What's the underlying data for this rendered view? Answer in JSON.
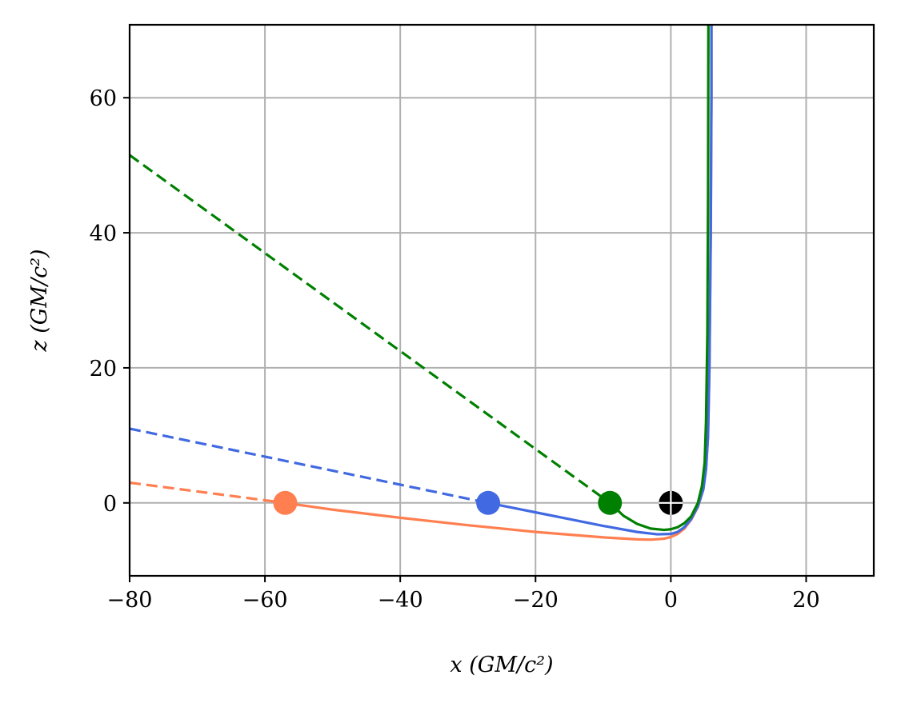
{
  "chart_data": {
    "type": "line",
    "title": "",
    "xlabel": "x (GM/c²)",
    "ylabel": "z (GM/c²)",
    "xlim": [
      -80,
      30
    ],
    "ylim": [
      -10.8,
      70.8
    ],
    "xticks": [
      -80,
      -60,
      -40,
      -20,
      0,
      20
    ],
    "yticks": [
      0,
      20,
      40,
      60
    ],
    "xtick_labels": [
      "−80",
      "−60",
      "−40",
      "−20",
      "0",
      "20"
    ],
    "ytick_labels": [
      "0",
      "20",
      "40",
      "60"
    ],
    "grid": true,
    "series": [
      {
        "color": "#ff7f50",
        "style": "dashed",
        "x": [
          -80,
          -57
        ],
        "y": [
          3.0,
          0.0
        ]
      },
      {
        "color": "#ff7f50",
        "style": "solid",
        "x": [
          -57,
          -50,
          -40,
          -30,
          -20,
          -10,
          -5,
          -3,
          -1,
          0,
          1,
          2,
          3,
          4,
          4.8,
          5.2,
          5.5,
          5.7,
          5.9,
          6.0,
          6.0
        ],
        "y": [
          0.0,
          -1.0,
          -2.2,
          -3.3,
          -4.3,
          -5.1,
          -5.4,
          -5.45,
          -5.3,
          -5.05,
          -4.6,
          -3.8,
          -2.5,
          -0.6,
          2.0,
          5.0,
          10.0,
          20.0,
          40.0,
          60.0,
          70.8
        ]
      },
      {
        "color": "#4169e1",
        "style": "dashed",
        "x": [
          -80,
          -27
        ],
        "y": [
          11.0,
          0.0
        ]
      },
      {
        "color": "#4169e1",
        "style": "solid",
        "x": [
          -27,
          -20,
          -15,
          -10,
          -5,
          -2,
          0,
          1,
          2,
          3,
          4,
          4.8,
          5.2,
          5.5,
          5.7,
          5.9,
          6.0,
          6.0
        ],
        "y": [
          0.0,
          -1.4,
          -2.4,
          -3.4,
          -4.3,
          -4.65,
          -4.6,
          -4.3,
          -3.6,
          -2.4,
          -0.5,
          2.0,
          5.0,
          10.0,
          20.0,
          40.0,
          60.0,
          70.8
        ]
      },
      {
        "color": "#008000",
        "style": "dashed",
        "x": [
          -80,
          -9
        ],
        "y": [
          51.5,
          0.0
        ]
      },
      {
        "color": "#008000",
        "style": "solid",
        "x": [
          -9,
          -7,
          -5,
          -3,
          -1,
          0,
          1,
          2,
          3,
          4,
          4.6,
          5.0,
          5.2,
          5.4,
          5.5,
          5.55
        ],
        "y": [
          0.0,
          -1.9,
          -3.1,
          -3.8,
          -4.0,
          -3.9,
          -3.6,
          -3.0,
          -2.0,
          0.0,
          2.5,
          6.0,
          12.0,
          25.0,
          45.0,
          70.8
        ]
      }
    ],
    "points": [
      {
        "x": -57,
        "y": 0,
        "color": "#ff7f50"
      },
      {
        "x": -27,
        "y": 0,
        "color": "#4169e1"
      },
      {
        "x": -9,
        "y": 0,
        "color": "#008000"
      },
      {
        "x": 0,
        "y": 0,
        "color": "#000000",
        "marker": "cross-circle"
      }
    ]
  }
}
